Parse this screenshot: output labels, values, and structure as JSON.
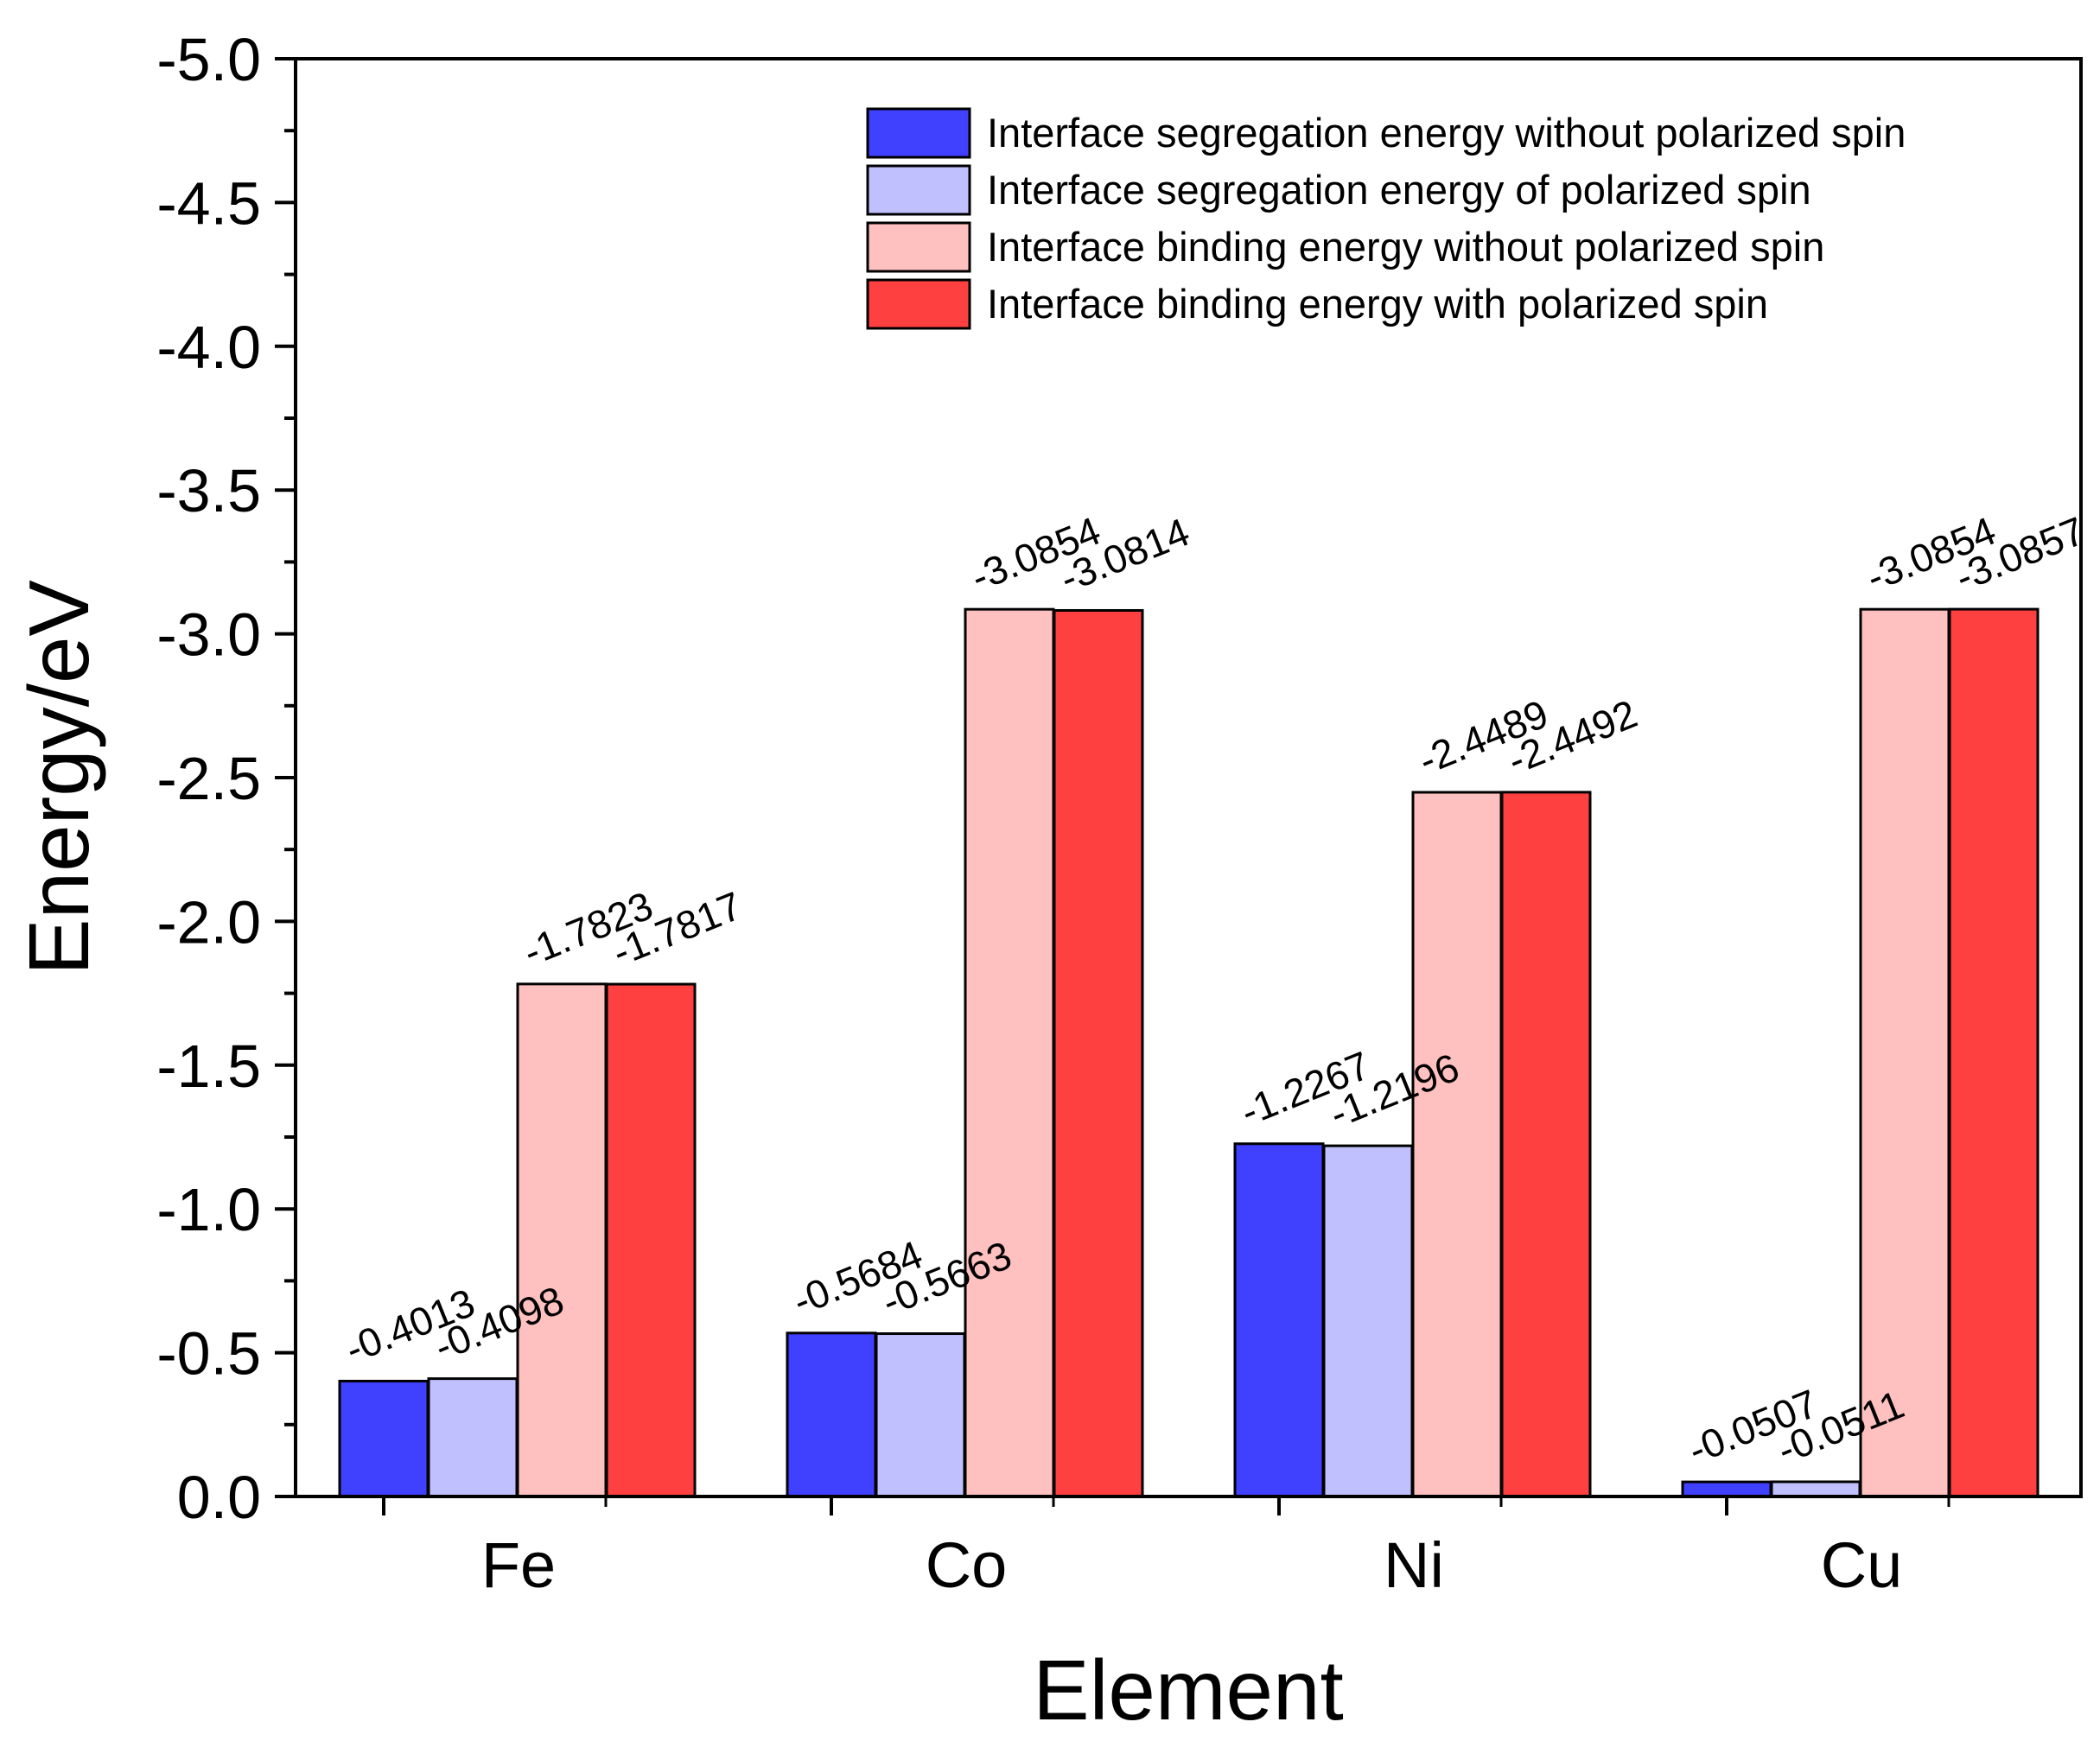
{
  "chart_data": {
    "type": "bar",
    "title": "",
    "xlabel": "Element",
    "ylabel": "Energy/eV",
    "categories": [
      "Fe",
      "Co",
      "Ni",
      "Cu"
    ],
    "ylim": [
      0.0,
      -5.0
    ],
    "yticks": [
      0.0,
      -0.5,
      -1.0,
      -1.5,
      -2.0,
      -2.5,
      -3.0,
      -3.5,
      -4.0,
      -4.5,
      -5.0
    ],
    "ytick_labels": [
      "0.0",
      "-0.5",
      "-1.0",
      "-1.5",
      "-2.0",
      "-2.5",
      "-3.0",
      "-3.5",
      "-4.0",
      "-4.5",
      "-5.0"
    ],
    "legend_position": "top-right",
    "series": [
      {
        "name": "Interface segregation energy without polarized spin",
        "color": "#4040ff",
        "values": [
          -0.4013,
          -0.5684,
          -1.2267,
          -0.0507
        ],
        "labels": [
          "-0.4013",
          "-0.5684",
          "-1.2267",
          "-0.0507"
        ]
      },
      {
        "name": "Interface segregation energy of polarized spin",
        "color": "#c0c0ff",
        "values": [
          -0.4098,
          -0.5663,
          -1.2196,
          -0.0511
        ],
        "labels": [
          "-0.4098",
          "-0.5663",
          "-1.2196",
          "-0.0511"
        ]
      },
      {
        "name": "Interface binding energy without polarized spin",
        "color": "#ffc0c0",
        "values": [
          -1.7823,
          -3.0854,
          -2.4489,
          -3.0854
        ],
        "labels": [
          "-1.7823",
          "-3.0854",
          "-2.4489",
          "-3.0854"
        ]
      },
      {
        "name": "Interface binding energy with polarized spin",
        "color": "#ff4040",
        "values": [
          -1.7817,
          -3.0814,
          -2.4492,
          -3.0857
        ],
        "labels": [
          "-1.7817",
          "-3.0814",
          "-2.4492",
          "-3.0857"
        ]
      }
    ]
  }
}
